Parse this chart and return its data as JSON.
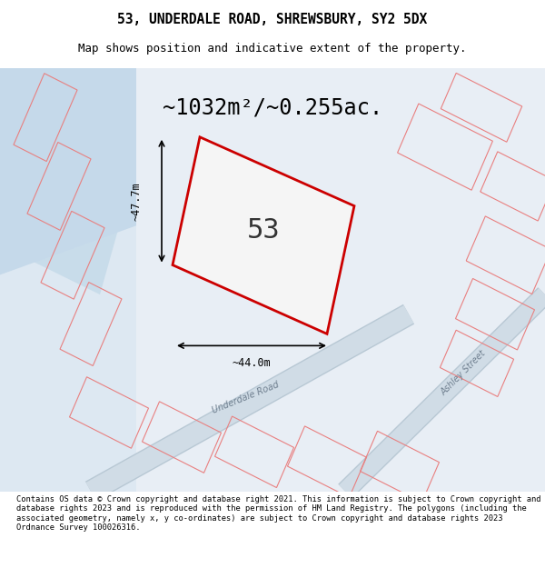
{
  "title_line1": "53, UNDERDALE ROAD, SHREWSBURY, SY2 5DX",
  "title_line2": "Map shows position and indicative extent of the property.",
  "area_text": "~1032m²/~0.255ac.",
  "property_number": "53",
  "dim_width": "~44.0m",
  "dim_height": "~47.7m",
  "footer_text": "Contains OS data © Crown copyright and database right 2021. This information is subject to Crown copyright and database rights 2023 and is reproduced with the permission of HM Land Registry. The polygons (including the associated geometry, namely x, y co-ordinates) are subject to Crown copyright and database rights 2023 Ordnance Survey 100026316.",
  "bg_color": "#e8eef5",
  "map_bg": "#dde8f0",
  "plot_color_fill": "none",
  "plot_edge_color": "#cc0000",
  "street_color": "#c8d8e8",
  "footer_bg": "#ffffff",
  "title_bg": "#ffffff",
  "map_area_color": "#eef2f8"
}
